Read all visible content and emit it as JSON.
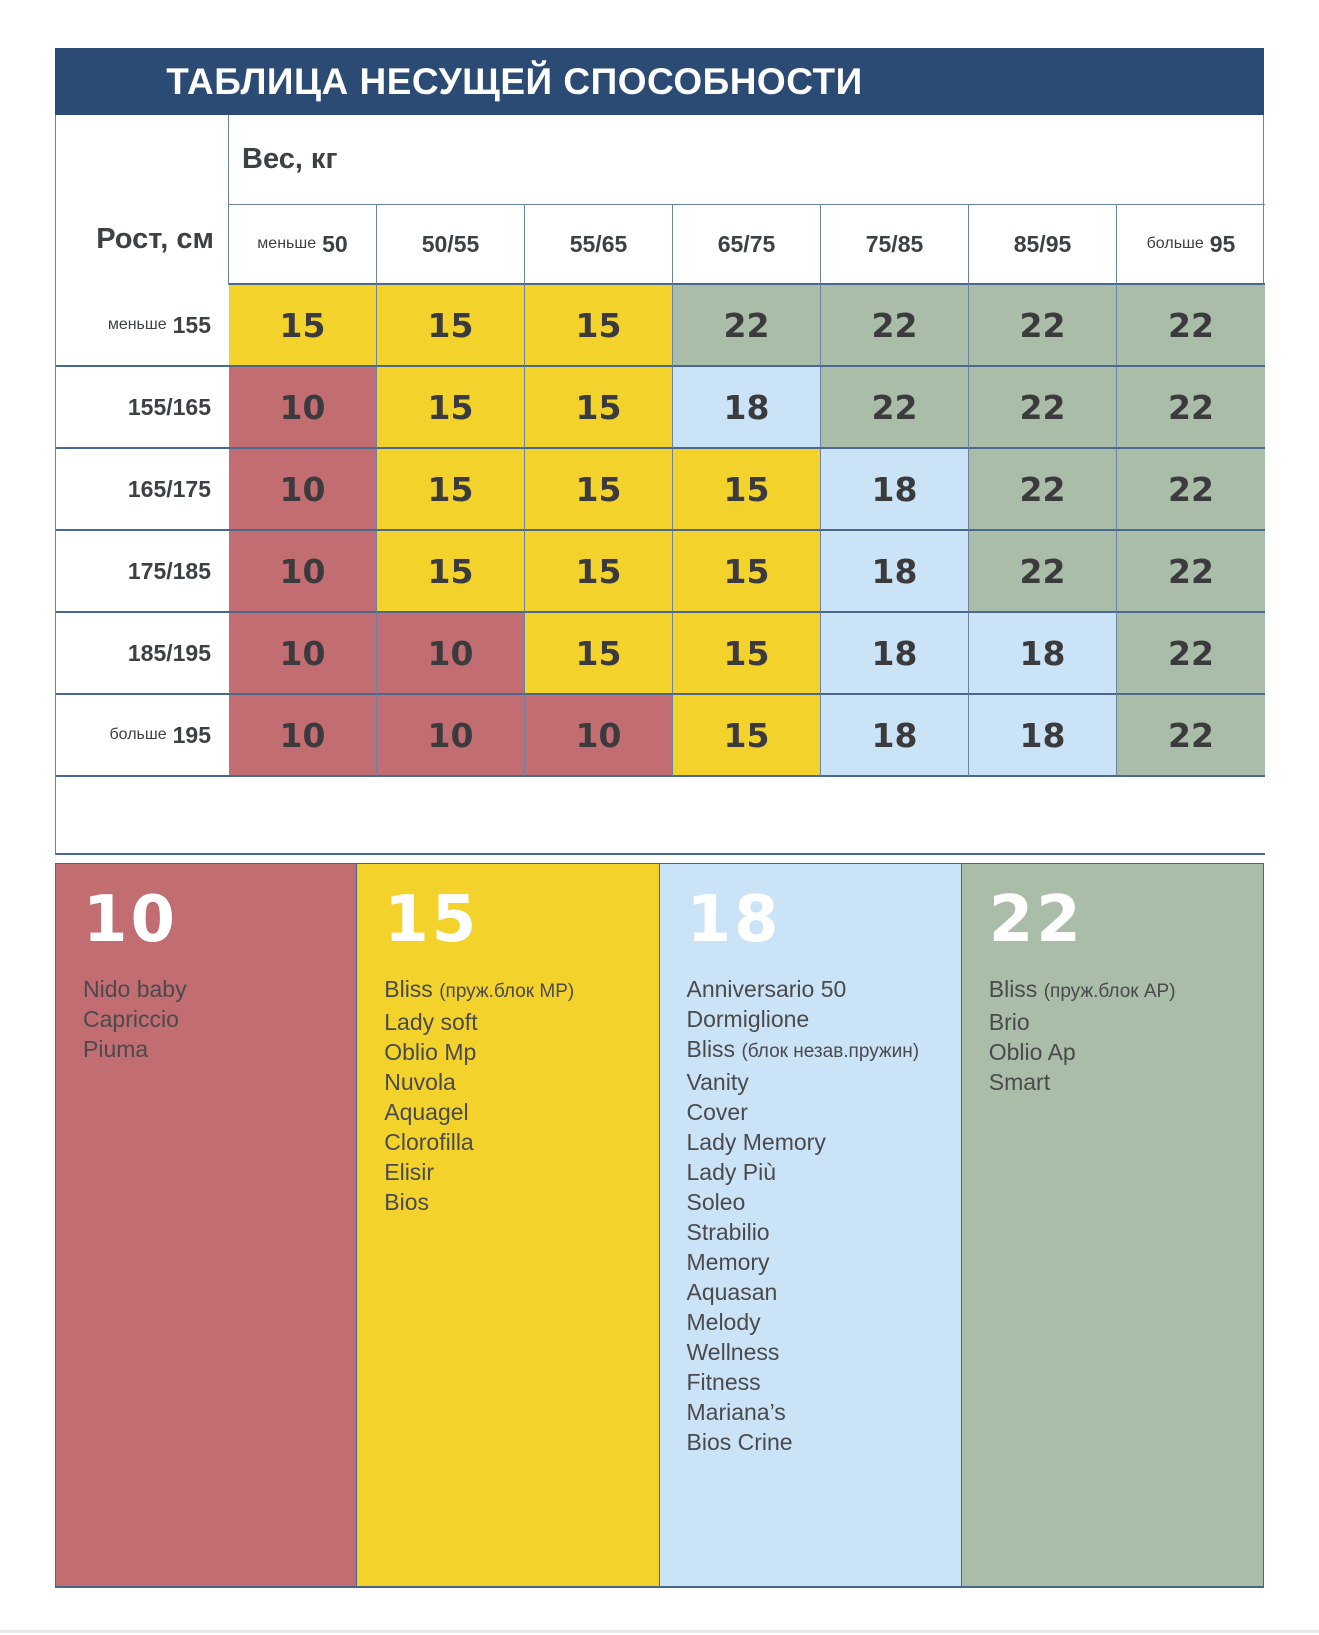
{
  "title": "ТАБЛИЦА НЕСУЩЕЙ СПОСОБНОСТИ",
  "colors": {
    "header_bar": "#2c4b74",
    "cell_10": "#c26d72",
    "cell_15": "#f3d32b",
    "cell_18": "#cbe3f6",
    "cell_22": "#aabda8",
    "bottom_strip": "#e6e9ee"
  },
  "table": {
    "weight_header": "Вес, кг",
    "height_header": "Рост, см",
    "columns": [
      {
        "prefix": "меньше",
        "label": "50"
      },
      {
        "prefix": "",
        "label": "50/55"
      },
      {
        "prefix": "",
        "label": "55/65"
      },
      {
        "prefix": "",
        "label": "65/75"
      },
      {
        "prefix": "",
        "label": "75/85"
      },
      {
        "prefix": "",
        "label": "85/95"
      },
      {
        "prefix": "больше",
        "label": "95"
      }
    ],
    "rows": [
      {
        "prefix": "меньше",
        "label": "155",
        "values": [
          "15",
          "15",
          "15",
          "22",
          "22",
          "22",
          "22"
        ]
      },
      {
        "prefix": "",
        "label": "155/165",
        "values": [
          "10",
          "15",
          "15",
          "18",
          "22",
          "22",
          "22"
        ]
      },
      {
        "prefix": "",
        "label": "165/175",
        "values": [
          "10",
          "15",
          "15",
          "15",
          "18",
          "22",
          "22"
        ]
      },
      {
        "prefix": "",
        "label": "175/185",
        "values": [
          "10",
          "15",
          "15",
          "15",
          "18",
          "22",
          "22"
        ]
      },
      {
        "prefix": "",
        "label": "185/195",
        "values": [
          "10",
          "10",
          "15",
          "15",
          "18",
          "18",
          "22"
        ]
      },
      {
        "prefix": "больше",
        "label": "195",
        "values": [
          "10",
          "10",
          "10",
          "15",
          "18",
          "18",
          "22"
        ]
      }
    ]
  },
  "legend": [
    {
      "value": "10",
      "color_key": "cell_10",
      "items": [
        {
          "name": "Nido baby"
        },
        {
          "name": "Capriccio"
        },
        {
          "name": "Piuma"
        }
      ]
    },
    {
      "value": "15",
      "color_key": "cell_15",
      "items": [
        {
          "name": "Bliss",
          "note": "(пруж.блок MP)"
        },
        {
          "name": "Lady soft"
        },
        {
          "name": "Oblio Mp"
        },
        {
          "name": "Nuvola"
        },
        {
          "name": "Aquagel"
        },
        {
          "name": "Clorofilla"
        },
        {
          "name": "Elisir"
        },
        {
          "name": "Bios"
        }
      ]
    },
    {
      "value": "18",
      "color_key": "cell_18",
      "items": [
        {
          "name": "Anniversario 50"
        },
        {
          "name": "Dormiglione"
        },
        {
          "name": "Bliss",
          "note": "(блок незав.пружин)"
        },
        {
          "name": "Vanity"
        },
        {
          "name": "Cover"
        },
        {
          "name": "Lady Memory"
        },
        {
          "name": "Lady Più"
        },
        {
          "name": "Soleo"
        },
        {
          "name": "Strabilio"
        },
        {
          "name": "Memory"
        },
        {
          "name": "Aquasan"
        },
        {
          "name": "Melody"
        },
        {
          "name": "Wellness"
        },
        {
          "name": "Fitness"
        },
        {
          "name": "Mariana’s"
        },
        {
          "name": "Bios Crine"
        }
      ]
    },
    {
      "value": "22",
      "color_key": "cell_22",
      "items": [
        {
          "name": "Bliss",
          "note": "(пруж.блок AP)"
        },
        {
          "name": "Brio"
        },
        {
          "name": "Oblio Ap"
        },
        {
          "name": "Smart"
        }
      ]
    }
  ]
}
